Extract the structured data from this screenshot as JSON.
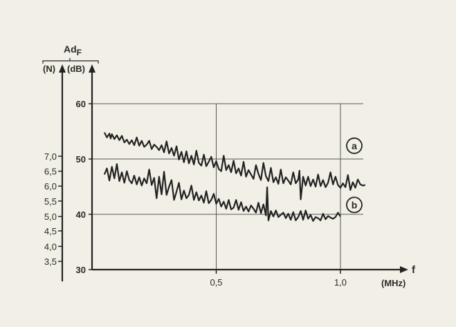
{
  "chart_data": {
    "type": "line",
    "title": "",
    "xlabel": "f",
    "x_unit": "(MHz)",
    "y_title": "AdF",
    "y_unit_left": "(N)",
    "y_unit_right": "(dB)",
    "xlim": [
      0,
      1.1
    ],
    "ylim": [
      30,
      60
    ],
    "x_ticks": [
      {
        "value": 0.5,
        "label": "0,5"
      },
      {
        "value": 1.0,
        "label": "1,0"
      }
    ],
    "y_ticks_db": [
      {
        "value": 30,
        "label": "30"
      },
      {
        "value": 40,
        "label": "40"
      },
      {
        "value": 50,
        "label": "50"
      },
      {
        "value": 60,
        "label": "60"
      }
    ],
    "y_ticks_n": [
      {
        "value": 31.5,
        "label": "3,5"
      },
      {
        "value": 34.2,
        "label": "4,0"
      },
      {
        "value": 37.0,
        "label": "4,5"
      },
      {
        "value": 39.6,
        "label": "5,0"
      },
      {
        "value": 42.4,
        "label": "5,5"
      },
      {
        "value": 45.1,
        "label": "6,0"
      },
      {
        "value": 47.8,
        "label": "6,5"
      },
      {
        "value": 50.5,
        "label": "7,0"
      }
    ],
    "grid": true,
    "series": [
      {
        "name": "a",
        "color": "#222222",
        "x": [
          0.05,
          0.06,
          0.07,
          0.075,
          0.08,
          0.09,
          0.1,
          0.11,
          0.12,
          0.13,
          0.14,
          0.15,
          0.16,
          0.17,
          0.18,
          0.19,
          0.2,
          0.21,
          0.22,
          0.23,
          0.24,
          0.25,
          0.26,
          0.27,
          0.28,
          0.29,
          0.3,
          0.31,
          0.32,
          0.33,
          0.34,
          0.35,
          0.36,
          0.37,
          0.38,
          0.39,
          0.4,
          0.41,
          0.42,
          0.43,
          0.44,
          0.45,
          0.46,
          0.47,
          0.48,
          0.49,
          0.5,
          0.51,
          0.52,
          0.53,
          0.54,
          0.55,
          0.56,
          0.57,
          0.58,
          0.59,
          0.6,
          0.61,
          0.62,
          0.63,
          0.64,
          0.65,
          0.66,
          0.67,
          0.68,
          0.69,
          0.7,
          0.71,
          0.72,
          0.73,
          0.74,
          0.75,
          0.76,
          0.77,
          0.78,
          0.79,
          0.8,
          0.81,
          0.82,
          0.83,
          0.835,
          0.84,
          0.85,
          0.86,
          0.87,
          0.88,
          0.89,
          0.9,
          0.91,
          0.92,
          0.93,
          0.94,
          0.95,
          0.96,
          0.97,
          0.98,
          0.99,
          1.0,
          1.01,
          1.02,
          1.03,
          1.04,
          1.05,
          1.06,
          1.07,
          1.08,
          1.09,
          1.1
        ],
        "y": [
          54.8,
          53.9,
          54.6,
          53.7,
          54.5,
          53.6,
          54.3,
          53.4,
          54.2,
          53.0,
          53.5,
          52.7,
          53.4,
          52.5,
          53.9,
          52.4,
          53.3,
          52.2,
          52.6,
          53.3,
          51.8,
          52.6,
          52.2,
          51.6,
          52.5,
          51.2,
          53.2,
          51.0,
          52.0,
          50.6,
          52.3,
          49.9,
          51.3,
          49.4,
          51.4,
          49.2,
          50.6,
          49.0,
          51.5,
          49.3,
          48.8,
          50.8,
          48.7,
          49.5,
          50.4,
          48.5,
          49.6,
          48.2,
          47.8,
          50.6,
          48.0,
          48.9,
          47.6,
          49.7,
          47.4,
          48.3,
          47.0,
          49.5,
          46.8,
          48.0,
          47.2,
          46.4,
          48.9,
          47.3,
          46.2,
          49.3,
          46.9,
          46.0,
          48.4,
          45.8,
          46.7,
          45.5,
          48.1,
          45.6,
          46.7,
          46.1,
          45.4,
          47.6,
          45.6,
          46.3,
          47.9,
          42.7,
          46.8,
          45.2,
          46.8,
          45.1,
          46.3,
          45.0,
          47.2,
          45.1,
          46.2,
          44.9,
          45.7,
          47.6,
          45.4,
          46.8,
          45.3,
          44.8,
          45.6,
          44.9,
          47.1,
          44.4,
          45.8,
          44.8,
          46.3,
          45.4,
          45.2,
          45.3
        ]
      },
      {
        "name": "b",
        "color": "#222222",
        "x": [
          0.05,
          0.06,
          0.07,
          0.08,
          0.09,
          0.1,
          0.11,
          0.12,
          0.13,
          0.14,
          0.15,
          0.16,
          0.17,
          0.18,
          0.19,
          0.2,
          0.21,
          0.22,
          0.23,
          0.24,
          0.25,
          0.26,
          0.27,
          0.28,
          0.29,
          0.3,
          0.31,
          0.32,
          0.33,
          0.34,
          0.35,
          0.36,
          0.37,
          0.38,
          0.39,
          0.4,
          0.41,
          0.42,
          0.43,
          0.44,
          0.45,
          0.46,
          0.47,
          0.48,
          0.49,
          0.5,
          0.51,
          0.52,
          0.53,
          0.54,
          0.55,
          0.56,
          0.57,
          0.58,
          0.59,
          0.6,
          0.61,
          0.62,
          0.63,
          0.64,
          0.65,
          0.66,
          0.67,
          0.68,
          0.69,
          0.7,
          0.705,
          0.71,
          0.72,
          0.73,
          0.74,
          0.75,
          0.76,
          0.77,
          0.78,
          0.79,
          0.8,
          0.81,
          0.82,
          0.83,
          0.84,
          0.85,
          0.86,
          0.87,
          0.88,
          0.89,
          0.9,
          0.91,
          0.92,
          0.93,
          0.94,
          0.95,
          0.96,
          0.97,
          0.98,
          0.99,
          1.0
        ],
        "y": [
          47.2,
          48.3,
          46.1,
          48.6,
          46.5,
          49.1,
          46.0,
          47.6,
          45.7,
          47.8,
          46.2,
          45.6,
          47.0,
          45.4,
          46.7,
          45.2,
          46.5,
          45.6,
          48.1,
          45.3,
          46.6,
          42.9,
          46.8,
          43.6,
          47.7,
          43.5,
          45.0,
          46.2,
          42.6,
          44.1,
          45.7,
          42.7,
          44.3,
          42.9,
          43.5,
          45.2,
          42.6,
          44.0,
          42.5,
          43.4,
          42.1,
          44.2,
          42.0,
          42.6,
          43.7,
          41.9,
          42.8,
          41.4,
          42.3,
          41.0,
          42.6,
          40.9,
          41.2,
          42.6,
          40.8,
          42.2,
          40.6,
          41.4,
          40.5,
          41.6,
          41.0,
          40.3,
          42.1,
          40.2,
          41.8,
          39.8,
          44.9,
          38.9,
          40.6,
          39.6,
          40.7,
          39.5,
          39.9,
          40.3,
          39.3,
          40.1,
          39.0,
          40.4,
          38.9,
          39.5,
          40.6,
          39.0,
          40.7,
          39.2,
          39.9,
          38.8,
          39.5,
          39.3,
          38.9,
          40.1,
          39.1,
          39.7,
          39.4,
          39.2,
          39.5,
          40.3,
          39.6
        ]
      }
    ],
    "series_label_values": [
      {
        "name": "a",
        "x": 1.04,
        "y": 52.4
      },
      {
        "name": "b",
        "x": 1.04,
        "y": 41.7
      }
    ]
  }
}
